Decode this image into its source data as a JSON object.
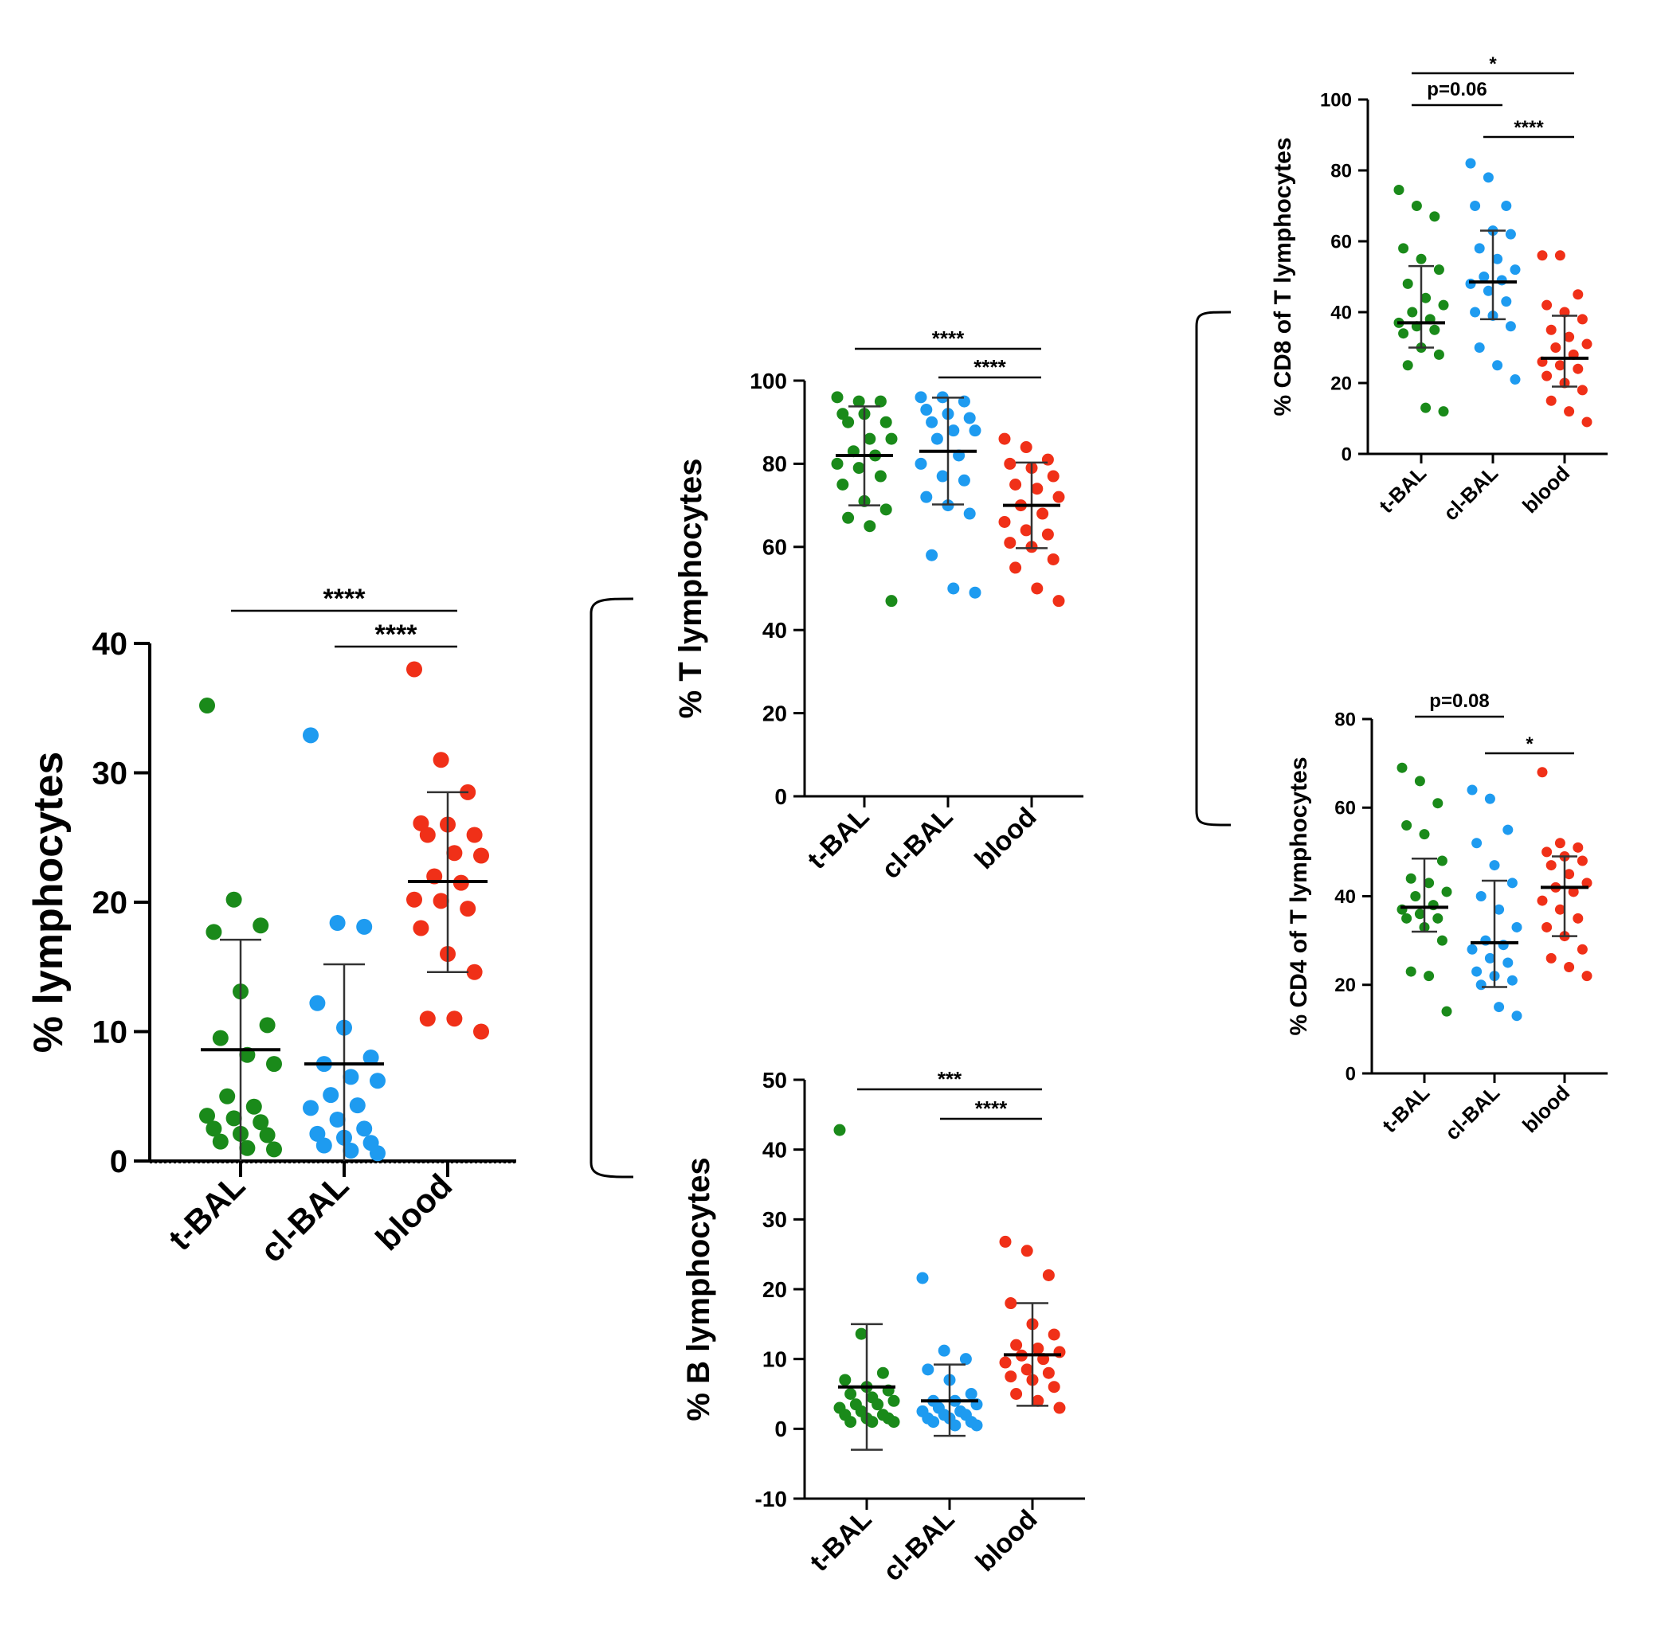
{
  "colors": {
    "t-BAL": "#1a8a1a",
    "cl-BAL": "#1e9bf0",
    "blood": "#f03018"
  },
  "chart_data": [
    {
      "id": "lymph",
      "type": "scatter",
      "ylabel": "% lymphocytes",
      "ylim": [
        0,
        40
      ],
      "yticks": [
        0,
        10,
        20,
        30,
        40
      ],
      "categories": [
        "t-BAL",
        "cl-BAL",
        "blood"
      ],
      "series": [
        {
          "name": "t-BAL",
          "mean": 8.6,
          "err_low": 0,
          "err_high": 17.1,
          "values": [
            35.2,
            20.2,
            18.2,
            17.7,
            13.1,
            10.5,
            9.5,
            8.2,
            7.5,
            5.0,
            4.2,
            3.5,
            3.3,
            3.0,
            2.5,
            2.1,
            2.0,
            1.5,
            1.0,
            0.9
          ]
        },
        {
          "name": "cl-BAL",
          "mean": 7.5,
          "err_low": 0,
          "err_high": 15.2,
          "values": [
            32.9,
            18.4,
            18.1,
            12.2,
            10.3,
            8.0,
            7.5,
            6.5,
            6.2,
            5.1,
            4.3,
            4.1,
            3.2,
            2.5,
            2.1,
            1.8,
            1.4,
            1.2,
            0.8,
            0.6
          ]
        },
        {
          "name": "blood",
          "mean": 21.6,
          "err_low": 14.6,
          "err_high": 28.5,
          "values": [
            38.0,
            31.0,
            28.5,
            26.1,
            26.0,
            25.2,
            25.2,
            23.8,
            23.6,
            22.0,
            21.5,
            20.2,
            20.1,
            19.5,
            18.0,
            16.0,
            14.6,
            11.0,
            11.0,
            10.0
          ]
        }
      ],
      "annotations": [
        {
          "from": "t-BAL",
          "to": "blood",
          "label": "****"
        },
        {
          "from": "cl-BAL",
          "to": "blood",
          "label": "****"
        }
      ]
    },
    {
      "id": "tlymph",
      "type": "scatter",
      "ylabel": "% T lymphocytes",
      "ylim": [
        0,
        100
      ],
      "yticks": [
        0,
        20,
        40,
        60,
        80,
        100
      ],
      "categories": [
        "t-BAL",
        "cl-BAL",
        "blood"
      ],
      "series": [
        {
          "name": "t-BAL",
          "mean": 82.0,
          "err_low": 70.0,
          "err_high": 93.8,
          "values": [
            96,
            95,
            95,
            92,
            92,
            90,
            90,
            86,
            86,
            83,
            82,
            80,
            79,
            77,
            75,
            71,
            69,
            67,
            65,
            47
          ]
        },
        {
          "name": "cl-BAL",
          "mean": 83.0,
          "err_low": 70.2,
          "err_high": 95.9,
          "values": [
            96,
            96,
            95,
            93,
            92,
            91,
            90,
            88,
            88,
            86,
            82,
            80,
            77,
            76,
            72,
            70,
            68,
            58,
            50,
            49
          ]
        },
        {
          "name": "blood",
          "mean": 70.0,
          "err_low": 59.7,
          "err_high": 80.3,
          "values": [
            86,
            84,
            81,
            80,
            79,
            77,
            75,
            74,
            72,
            70,
            68,
            66,
            64,
            63,
            61,
            60,
            57,
            55,
            50,
            47
          ]
        }
      ],
      "annotations": [
        {
          "from": "t-BAL",
          "to": "blood",
          "label": "****"
        },
        {
          "from": "cl-BAL",
          "to": "blood",
          "label": "****"
        }
      ]
    },
    {
      "id": "blymph",
      "type": "scatter",
      "ylabel": "% B lymphocytes",
      "ylim": [
        -10,
        50
      ],
      "yticks": [
        -10,
        0,
        10,
        20,
        30,
        40,
        50
      ],
      "categories": [
        "t-BAL",
        "cl-BAL",
        "blood"
      ],
      "series": [
        {
          "name": "t-BAL",
          "mean": 6.0,
          "err_low": -3.0,
          "err_high": 15.0,
          "values": [
            42.8,
            13.6,
            8.0,
            7.0,
            6.0,
            5.5,
            5.0,
            4.5,
            4.0,
            3.5,
            3.5,
            3.0,
            2.5,
            2.0,
            2.0,
            1.5,
            1.5,
            1.0,
            1.0,
            1.0
          ]
        },
        {
          "name": "cl-BAL",
          "mean": 4.0,
          "err_low": -1.0,
          "err_high": 9.2,
          "values": [
            21.6,
            11.2,
            10.0,
            8.5,
            7.0,
            5.0,
            4.0,
            4.0,
            3.5,
            3.0,
            2.5,
            2.5,
            2.0,
            2.0,
            1.5,
            1.5,
            1.0,
            1.0,
            0.5,
            0.5
          ]
        },
        {
          "name": "blood",
          "mean": 10.6,
          "err_low": 3.3,
          "err_high": 18.0,
          "values": [
            26.8,
            25.5,
            22.0,
            18.0,
            15.0,
            13.5,
            12.0,
            11.5,
            11.0,
            10.5,
            10.0,
            9.5,
            8.5,
            8.0,
            7.5,
            7.0,
            6.0,
            5.0,
            4.0,
            3.0
          ]
        }
      ],
      "annotations": [
        {
          "from": "t-BAL",
          "to": "blood",
          "label": "***"
        },
        {
          "from": "cl-BAL",
          "to": "blood",
          "label": "****"
        }
      ]
    },
    {
      "id": "cd8",
      "type": "scatter",
      "ylabel": "% CD8 of T lymphocytes",
      "ylim": [
        0,
        100
      ],
      "yticks": [
        0,
        20,
        40,
        60,
        80,
        100
      ],
      "categories": [
        "t-BAL",
        "cl-BAL",
        "blood"
      ],
      "series": [
        {
          "name": "t-BAL",
          "mean": 37.0,
          "err_low": 30.0,
          "err_high": 53.0,
          "values": [
            74.5,
            70,
            67,
            58,
            55,
            52,
            48,
            44,
            42,
            40,
            38,
            37,
            36,
            35,
            34,
            30,
            28,
            25,
            13,
            12
          ]
        },
        {
          "name": "cl-BAL",
          "mean": 48.5,
          "err_low": 38.0,
          "err_high": 63.0,
          "values": [
            82,
            78,
            70,
            70,
            63,
            62,
            58,
            55,
            52,
            50,
            49,
            48,
            46,
            43,
            40,
            39,
            36,
            30,
            25,
            21
          ]
        },
        {
          "name": "blood",
          "mean": 27.0,
          "err_low": 19.0,
          "err_high": 39.0,
          "values": [
            56,
            56,
            45,
            42,
            40,
            38,
            35,
            33,
            31,
            30,
            28,
            26,
            25,
            24,
            22,
            20,
            18,
            15,
            12,
            9
          ]
        }
      ],
      "annotations": [
        {
          "from": "t-BAL",
          "to": "blood",
          "label": "*"
        },
        {
          "from": "t-BAL",
          "to": "cl-BAL",
          "label": "p=0.06"
        },
        {
          "from": "cl-BAL",
          "to": "blood",
          "label": "****"
        }
      ]
    },
    {
      "id": "cd4",
      "type": "scatter",
      "ylabel": "% CD4 of T lymphocytes",
      "ylim": [
        0,
        80
      ],
      "yticks": [
        0,
        20,
        40,
        60,
        80
      ],
      "categories": [
        "t-BAL",
        "cl-BAL",
        "blood"
      ],
      "series": [
        {
          "name": "t-BAL",
          "mean": 37.5,
          "err_low": 32.0,
          "err_high": 48.5,
          "values": [
            69,
            66,
            61,
            56,
            54,
            48,
            44,
            43,
            41,
            40,
            38,
            37,
            36,
            35,
            35,
            33,
            30,
            23,
            22,
            14
          ]
        },
        {
          "name": "cl-BAL",
          "mean": 29.5,
          "err_low": 19.5,
          "err_high": 43.5,
          "values": [
            64,
            62,
            55,
            52,
            47,
            43,
            40,
            37,
            33,
            30,
            29,
            28,
            26,
            25,
            23,
            22,
            21,
            20,
            15,
            13
          ]
        },
        {
          "name": "blood",
          "mean": 42.0,
          "err_low": 31.0,
          "err_high": 49.0,
          "values": [
            68,
            52,
            51,
            50,
            49,
            48,
            47,
            45,
            43,
            42,
            41,
            39,
            37,
            35,
            33,
            31,
            28,
            26,
            24,
            22
          ]
        }
      ],
      "annotations": [
        {
          "from": "t-BAL",
          "to": "cl-BAL",
          "label": "p=0.08"
        },
        {
          "from": "cl-BAL",
          "to": "blood",
          "label": "*"
        }
      ]
    }
  ]
}
